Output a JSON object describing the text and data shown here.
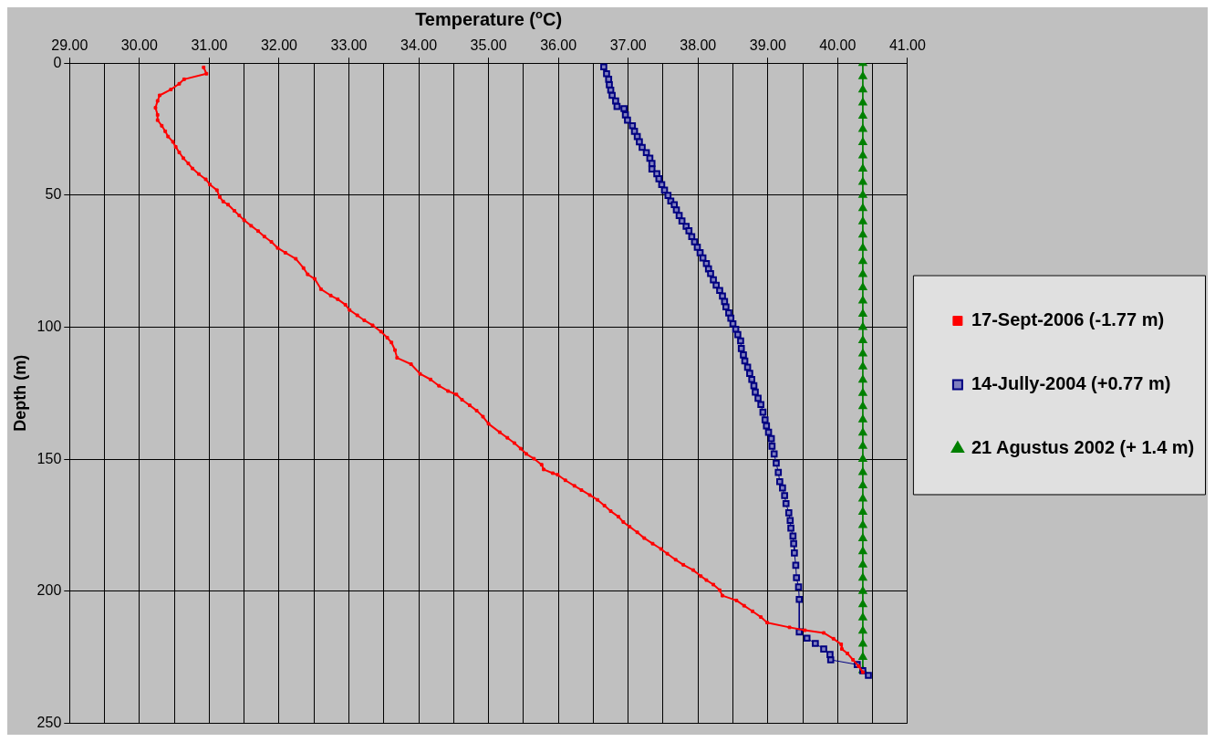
{
  "chart_data": {
    "type": "line",
    "xlabel": "Temperature ($^{o}$C)",
    "ylabel": "Depth (m)",
    "xlim": [
      29,
      41
    ],
    "ylim": [
      250,
      0
    ],
    "xticks": [
      {
        "value": 29,
        "label": "29.00"
      },
      {
        "value": 29.5,
        "label": null
      },
      {
        "value": 30,
        "label": "30.00"
      },
      {
        "value": 30.5,
        "label": null
      },
      {
        "value": 31,
        "label": "31.00"
      },
      {
        "value": 31.5,
        "label": null
      },
      {
        "value": 32,
        "label": "32.00"
      },
      {
        "value": 32.5,
        "label": null
      },
      {
        "value": 33,
        "label": "33.00"
      },
      {
        "value": 33.5,
        "label": null
      },
      {
        "value": 34,
        "label": "34.00"
      },
      {
        "value": 34.5,
        "label": null
      },
      {
        "value": 35,
        "label": "35.00"
      },
      {
        "value": 35.5,
        "label": null
      },
      {
        "value": 36,
        "label": "36.00"
      },
      {
        "value": 36.5,
        "label": null
      },
      {
        "value": 37,
        "label": "37.00"
      },
      {
        "value": 37.5,
        "label": null
      },
      {
        "value": 38,
        "label": "38.00"
      },
      {
        "value": 38.5,
        "label": null
      },
      {
        "value": 39,
        "label": "39.00"
      },
      {
        "value": 39.5,
        "label": null
      },
      {
        "value": 40,
        "label": "40.00"
      },
      {
        "value": 40.5,
        "label": null
      },
      {
        "value": 41,
        "label": "41.00"
      }
    ],
    "yticks": [
      0,
      50,
      100,
      150,
      200,
      250
    ],
    "grid": true,
    "legend": "right",
    "series": [
      {
        "name": "17-Sept-2006 (-1.77 m)",
        "color": "#ff0000",
        "marker": "square",
        "x": [
          30.92,
          30.96,
          30.64,
          30.57,
          30.45,
          30.29,
          30.26,
          30.23,
          30.26,
          30.26,
          30.32,
          30.37,
          30.41,
          30.48,
          30.52,
          30.57,
          30.63,
          30.7,
          30.76,
          30.85,
          30.95,
          31.01,
          31.11,
          31.15,
          31.2,
          31.27,
          31.36,
          31.43,
          31.5,
          31.6,
          31.7,
          31.79,
          31.89,
          31.98,
          32.09,
          32.24,
          32.35,
          32.41,
          32.51,
          32.6,
          32.74,
          32.84,
          32.95,
          33.01,
          33.12,
          33.22,
          33.34,
          33.46,
          33.55,
          33.61,
          33.66,
          33.69,
          33.89,
          34.02,
          34.17,
          34.29,
          34.42,
          34.54,
          34.62,
          34.73,
          34.83,
          34.92,
          35,
          35.16,
          35.27,
          35.37,
          35.46,
          35.54,
          35.65,
          35.76,
          35.79,
          35.92,
          35.99,
          36.1,
          36.23,
          36.33,
          36.45,
          36.56,
          36.66,
          36.75,
          36.86,
          36.93,
          37.02,
          37.13,
          37.23,
          37.35,
          37.47,
          37.56,
          37.68,
          37.79,
          37.93,
          38.04,
          38.12,
          38.22,
          38.31,
          38.35,
          38.55,
          38.66,
          38.78,
          38.9,
          38.99,
          39.31,
          39.53,
          39.8,
          39.94,
          40.05,
          40.06,
          40.14,
          40.22,
          40.3,
          40.36
        ],
        "values": [
          1.6,
          4,
          6.1,
          7.8,
          10,
          12.2,
          14.3,
          16.9,
          19.6,
          21.6,
          23.7,
          25.8,
          27.8,
          29.8,
          31.7,
          33.8,
          36,
          38,
          39.9,
          42,
          44,
          46,
          48.1,
          50.7,
          52.4,
          53.6,
          55.9,
          57.7,
          59.5,
          61.6,
          63.6,
          65.7,
          67.7,
          70,
          71.8,
          74.1,
          77.6,
          80,
          81.7,
          85.6,
          88,
          89.4,
          91.5,
          93.5,
          95.5,
          97.4,
          99.3,
          101.7,
          104,
          105.8,
          108.7,
          111.6,
          114,
          117.7,
          119.8,
          122.2,
          124.2,
          125.5,
          127.5,
          129.6,
          131.6,
          133.9,
          136.6,
          139.8,
          141.9,
          143.9,
          146,
          148,
          149.8,
          152.1,
          153.9,
          155.3,
          155.9,
          158,
          160.1,
          161.7,
          163.6,
          165.4,
          167.6,
          169.7,
          171.8,
          173.8,
          175.6,
          177.7,
          179.9,
          182,
          184,
          185.8,
          188.1,
          190,
          192,
          194.3,
          195.8,
          197.5,
          199.6,
          201.7,
          203.5,
          205.5,
          207.6,
          209.8,
          211.9,
          213.7,
          214.8,
          215.8,
          218,
          220.1,
          221.9,
          223.6,
          226,
          228.4,
          230.7
        ]
      },
      {
        "name": "14-Jully-2004 (+0.77 m)",
        "color": "#000080",
        "marker": "square",
        "x": [
          36.65,
          36.69,
          36.72,
          36.73,
          36.75,
          36.77,
          36.82,
          36.84,
          36.94,
          36.96,
          36.99,
          37.06,
          37.09,
          37.13,
          37.16,
          37.2,
          37.26,
          37.31,
          37.34,
          37.34,
          37.41,
          37.44,
          37.48,
          37.52,
          37.57,
          37.61,
          37.66,
          37.69,
          37.73,
          37.77,
          37.83,
          37.87,
          37.91,
          37.95,
          37.99,
          38.03,
          38.07,
          38.12,
          38.15,
          38.18,
          38.22,
          38.26,
          38.31,
          38.35,
          38.38,
          38.4,
          38.44,
          38.47,
          38.5,
          38.54,
          38.57,
          38.61,
          38.62,
          38.65,
          38.67,
          38.71,
          38.74,
          38.77,
          38.8,
          38.82,
          38.86,
          38.9,
          38.93,
          38.96,
          38.98,
          39.01,
          39.05,
          39.06,
          39.09,
          39.12,
          39.15,
          39.17,
          39.21,
          39.24,
          39.26,
          39.3,
          39.32,
          39.33,
          39.36,
          39.37,
          39.38,
          39.4,
          39.41,
          39.44,
          39.45,
          39.45,
          39.56,
          39.68,
          39.8,
          39.89,
          39.9,
          40.28,
          40.36,
          40.44
        ],
        "values": [
          1.4,
          4,
          6.1,
          8.2,
          10.2,
          12.2,
          14.3,
          16.4,
          17.2,
          19.6,
          21.6,
          23.7,
          25.8,
          27.8,
          29.8,
          31.9,
          33.9,
          36,
          38,
          40.1,
          41.9,
          43.8,
          46,
          48.1,
          50.1,
          52.2,
          53.6,
          55.6,
          57.7,
          59.8,
          61.8,
          63.5,
          65.7,
          67.7,
          69.7,
          71.8,
          73.8,
          75.9,
          77.9,
          79.7,
          82.1,
          84.1,
          86.1,
          88.2,
          90.3,
          92.3,
          94.6,
          96.6,
          98.7,
          100.8,
          102.8,
          105.2,
          108.1,
          110.5,
          112.8,
          115.2,
          117.5,
          119.8,
          122.2,
          124.6,
          126.9,
          129.3,
          132.2,
          135.1,
          137.4,
          139.8,
          142.2,
          145.1,
          148,
          151.5,
          155,
          158.5,
          160.9,
          163.8,
          166.8,
          170.3,
          173.2,
          176.1,
          179.1,
          182,
          185.5,
          190.2,
          194.9,
          198.4,
          203.1,
          215.4,
          217.8,
          219.8,
          221.9,
          224,
          226,
          227.8,
          230.1,
          231.9
        ]
      },
      {
        "name": "21 Agustus 2002 (+ 1.4 m)",
        "color": "#008000",
        "marker": "triangle",
        "x": [
          40.36,
          40.36,
          40.36,
          40.36,
          40.36,
          40.36,
          40.36,
          40.36,
          40.36,
          40.36,
          40.36,
          40.36,
          40.36,
          40.36,
          40.36,
          40.36,
          40.36,
          40.36,
          40.36,
          40.36,
          40.36,
          40.36,
          40.36,
          40.36,
          40.36,
          40.36,
          40.36,
          40.36,
          40.36,
          40.36,
          40.36,
          40.36,
          40.36,
          40.36,
          40.36,
          40.36,
          40.36,
          40.36,
          40.36,
          40.36,
          40.36,
          40.36,
          40.36,
          40.36,
          40.36,
          40.36,
          40.36
        ],
        "values": [
          0,
          5,
          10,
          15,
          20,
          25,
          30,
          35,
          40,
          45,
          50,
          55,
          60,
          65,
          70,
          75,
          80,
          85,
          90,
          95,
          100,
          105,
          110,
          115,
          120,
          125,
          130,
          135,
          140,
          145,
          150,
          155,
          160,
          165,
          170,
          175,
          180,
          185,
          190,
          195,
          200,
          205,
          210,
          215,
          220,
          225,
          230
        ]
      }
    ]
  }
}
